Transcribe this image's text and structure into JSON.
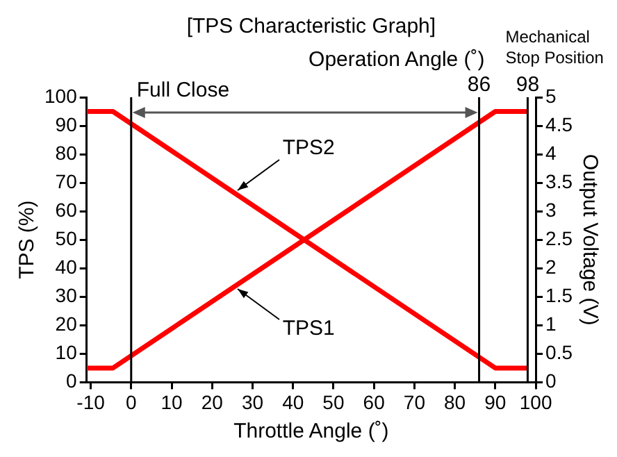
{
  "chart_data": {
    "type": "line",
    "title": "[TPS Characteristic Graph]",
    "xlabel": "Throttle Angle (˚)",
    "ylabel": "TPS (%)",
    "y2label": "Output Voltage (V)",
    "series": [
      {
        "name": "TPS1",
        "color": "#ff0000",
        "x": [
          -11,
          -4.5,
          90,
          98
        ],
        "values": [
          5,
          5,
          95,
          95
        ]
      },
      {
        "name": "TPS2",
        "color": "#ff0000",
        "x": [
          -11,
          -4.5,
          90,
          98
        ],
        "values": [
          95,
          95,
          5,
          5
        ]
      }
    ],
    "xlim": [
      -11,
      100
    ],
    "xticks": [
      -10,
      0,
      10,
      20,
      30,
      40,
      50,
      60,
      70,
      80,
      90,
      100
    ],
    "ylim": [
      0,
      100
    ],
    "yticks": [
      0,
      10,
      20,
      30,
      40,
      50,
      60,
      70,
      80,
      90,
      100
    ],
    "y2lim": [
      0,
      5
    ],
    "y2ticks": [
      0,
      0.5,
      1,
      1.5,
      2,
      2.5,
      3,
      3.5,
      4,
      4.5,
      5
    ],
    "ref_lines": [
      {
        "axis": "x",
        "value": 0,
        "label": "Full Close",
        "color": "#000000"
      },
      {
        "axis": "x",
        "value": 86,
        "label": "86",
        "color": "#000000"
      },
      {
        "axis": "x",
        "value": 98,
        "label": "98",
        "color": "#000000"
      }
    ],
    "annotations": [
      "Operation Angle (˚)",
      "Mechanical Stop Position"
    ],
    "grid": false,
    "legend": false,
    "marker": "none",
    "line_style": "solid"
  }
}
